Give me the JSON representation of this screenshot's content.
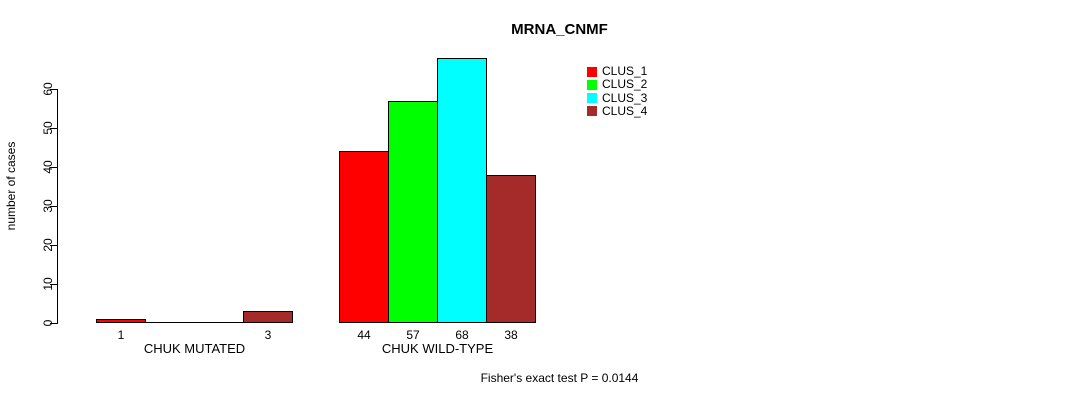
{
  "chart_data": {
    "type": "bar",
    "title": "MRNA_CNMF",
    "ylabel": "number of cases",
    "xlabel": "",
    "annotation": "Fisher's exact test P = 0.0144",
    "categories": [
      "CHUK MUTATED",
      "CHUK WILD-TYPE"
    ],
    "series": [
      {
        "name": "CLUS_1",
        "color": "#FF0000",
        "values": [
          1,
          44
        ]
      },
      {
        "name": "CLUS_2",
        "color": "#00FF00",
        "values": [
          0,
          57
        ]
      },
      {
        "name": "CLUS_3",
        "color": "#00FFFF",
        "values": [
          0,
          68
        ]
      },
      {
        "name": "CLUS_4",
        "color": "#A52A2A",
        "values": [
          3,
          38
        ]
      }
    ],
    "bar_value_labels": [
      [
        "1",
        "",
        "",
        "3"
      ],
      [
        "44",
        "57",
        "68",
        "38"
      ]
    ],
    "yticks": [
      0,
      10,
      20,
      30,
      40,
      50,
      60
    ],
    "ylim": [
      0,
      68.9
    ],
    "grid": false,
    "legend_position": "top-right",
    "bar_outline_color": "#000000",
    "background_color": "#FFFFFF"
  }
}
